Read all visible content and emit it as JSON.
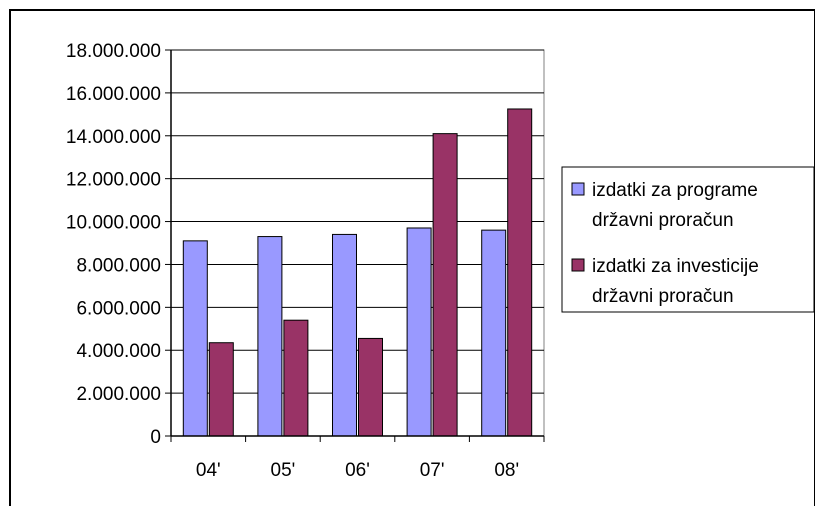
{
  "chart_data": {
    "type": "bar",
    "categories": [
      "04'",
      "05'",
      "06'",
      "07'",
      "08'"
    ],
    "series": [
      {
        "name": [
          "izdatki za programe",
          "državni proračun"
        ],
        "values": [
          9100000,
          9300000,
          9400000,
          9700000,
          9600000
        ],
        "color": "#9999ff"
      },
      {
        "name": [
          "izdatki za investicije",
          "državni proračun"
        ],
        "values": [
          4350000,
          5400000,
          4550000,
          14100000,
          15250000
        ],
        "color": "#993366"
      }
    ],
    "title": "",
    "xlabel": "",
    "ylabel": "",
    "ylim": [
      0,
      18000000
    ],
    "yticks": [
      0,
      2000000,
      4000000,
      6000000,
      8000000,
      10000000,
      12000000,
      14000000,
      16000000,
      18000000
    ],
    "ytick_labels": [
      "0",
      "2.000.000",
      "4.000.000",
      "6.000.000",
      "8.000.000",
      "10.000.000",
      "12.000.000",
      "14.000.000",
      "16.000.000",
      "18.000.000"
    ],
    "grid": true,
    "legend_position": "right"
  }
}
